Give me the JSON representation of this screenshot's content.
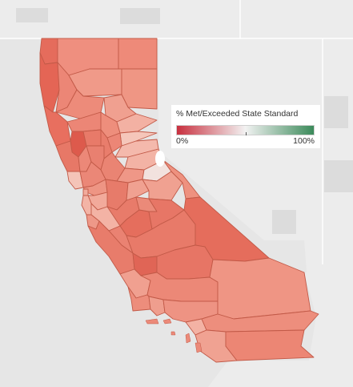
{
  "map": {
    "colors": {
      "background": "#e6e6e6",
      "neighbor_land": "#ececec",
      "land_dark": "#dedede",
      "border": "#ffffff",
      "county_border": "#c25a48",
      "low": "#c8303f",
      "mid": "#f2f2f2",
      "high": "#3b8a5a"
    },
    "counties": [
      {
        "name": "Del Norte",
        "fill": "#e56c5c"
      },
      {
        "name": "Siskiyou",
        "fill": "#ef8f7f"
      },
      {
        "name": "Modoc",
        "fill": "#ee8a79"
      },
      {
        "name": "Humboldt",
        "fill": "#e46555"
      },
      {
        "name": "Trinity",
        "fill": "#ec8676"
      },
      {
        "name": "Shasta",
        "fill": "#f09a89"
      },
      {
        "name": "Lassen",
        "fill": "#ef9684"
      },
      {
        "name": "Tehama",
        "fill": "#ed8b7a"
      },
      {
        "name": "Plumas",
        "fill": "#f0a090"
      },
      {
        "name": "Mendocino",
        "fill": "#e86f5f"
      },
      {
        "name": "Glenn",
        "fill": "#ec8676"
      },
      {
        "name": "Butte",
        "fill": "#ee8e7c"
      },
      {
        "name": "Lake",
        "fill": "#dd5a4c"
      },
      {
        "name": "Colusa",
        "fill": "#e87a69"
      },
      {
        "name": "Sierra",
        "fill": "#f3b1a3"
      },
      {
        "name": "Nevada",
        "fill": "#f5c6ba"
      },
      {
        "name": "Yuba",
        "fill": "#ec8676"
      },
      {
        "name": "Sutter",
        "fill": "#e97d6c"
      },
      {
        "name": "Placer",
        "fill": "#f4b9ac"
      },
      {
        "name": "El Dorado",
        "fill": "#f3b3a5"
      },
      {
        "name": "Sonoma",
        "fill": "#e77867"
      },
      {
        "name": "Napa",
        "fill": "#ec8878"
      },
      {
        "name": "Yolo",
        "fill": "#e98070"
      },
      {
        "name": "Sacramento",
        "fill": "#ea8473"
      },
      {
        "name": "Marin",
        "fill": "#f4c4b8"
      },
      {
        "name": "Solano",
        "fill": "#eb8777"
      },
      {
        "name": "Amador",
        "fill": "#ef9787"
      },
      {
        "name": "Alpine",
        "fill": "#f2e2de"
      },
      {
        "name": "Contra Costa",
        "fill": "#ee9584"
      },
      {
        "name": "San Joaquin",
        "fill": "#e77b6a"
      },
      {
        "name": "Calaveras",
        "fill": "#f0a191"
      },
      {
        "name": "Tuolumne",
        "fill": "#f0a191"
      },
      {
        "name": "Mono",
        "fill": "#ee917f"
      },
      {
        "name": "San Francisco",
        "fill": "#f2ab9c"
      },
      {
        "name": "Alameda",
        "fill": "#f2aa9b"
      },
      {
        "name": "San Mateo",
        "fill": "#f3b4a6"
      },
      {
        "name": "Santa Clara",
        "fill": "#f3b3a5"
      },
      {
        "name": "Stanislaus",
        "fill": "#e87b6a"
      },
      {
        "name": "Merced",
        "fill": "#e56e5d"
      },
      {
        "name": "Mariposa",
        "fill": "#eb8a79"
      },
      {
        "name": "Madera",
        "fill": "#e77666"
      },
      {
        "name": "Santa Cruz",
        "fill": "#ee9888"
      },
      {
        "name": "San Benito",
        "fill": "#ea8272"
      },
      {
        "name": "Fresno",
        "fill": "#e87a69"
      },
      {
        "name": "Inyo",
        "fill": "#e56d5c"
      },
      {
        "name": "Monterey",
        "fill": "#e87c6b"
      },
      {
        "name": "Kings",
        "fill": "#e06556"
      },
      {
        "name": "Tulare",
        "fill": "#e77565"
      },
      {
        "name": "San Luis Obispo",
        "fill": "#f0a090"
      },
      {
        "name": "Kern",
        "fill": "#ec8877"
      },
      {
        "name": "Santa Barbara",
        "fill": "#ed8d7c"
      },
      {
        "name": "Ventura",
        "fill": "#ef9e8e"
      },
      {
        "name": "Los Angeles",
        "fill": "#ee9383"
      },
      {
        "name": "San Bernardino",
        "fill": "#ef9584"
      },
      {
        "name": "Orange",
        "fill": "#f3b2a4"
      },
      {
        "name": "Riverside",
        "fill": "#ed8e7d"
      },
      {
        "name": "San Diego",
        "fill": "#f0a292"
      },
      {
        "name": "Imperial",
        "fill": "#ec8674"
      }
    ],
    "legend": {
      "title": "% Met/Exceeded State Standard",
      "min_label": "0%",
      "max_label": "100%"
    }
  }
}
